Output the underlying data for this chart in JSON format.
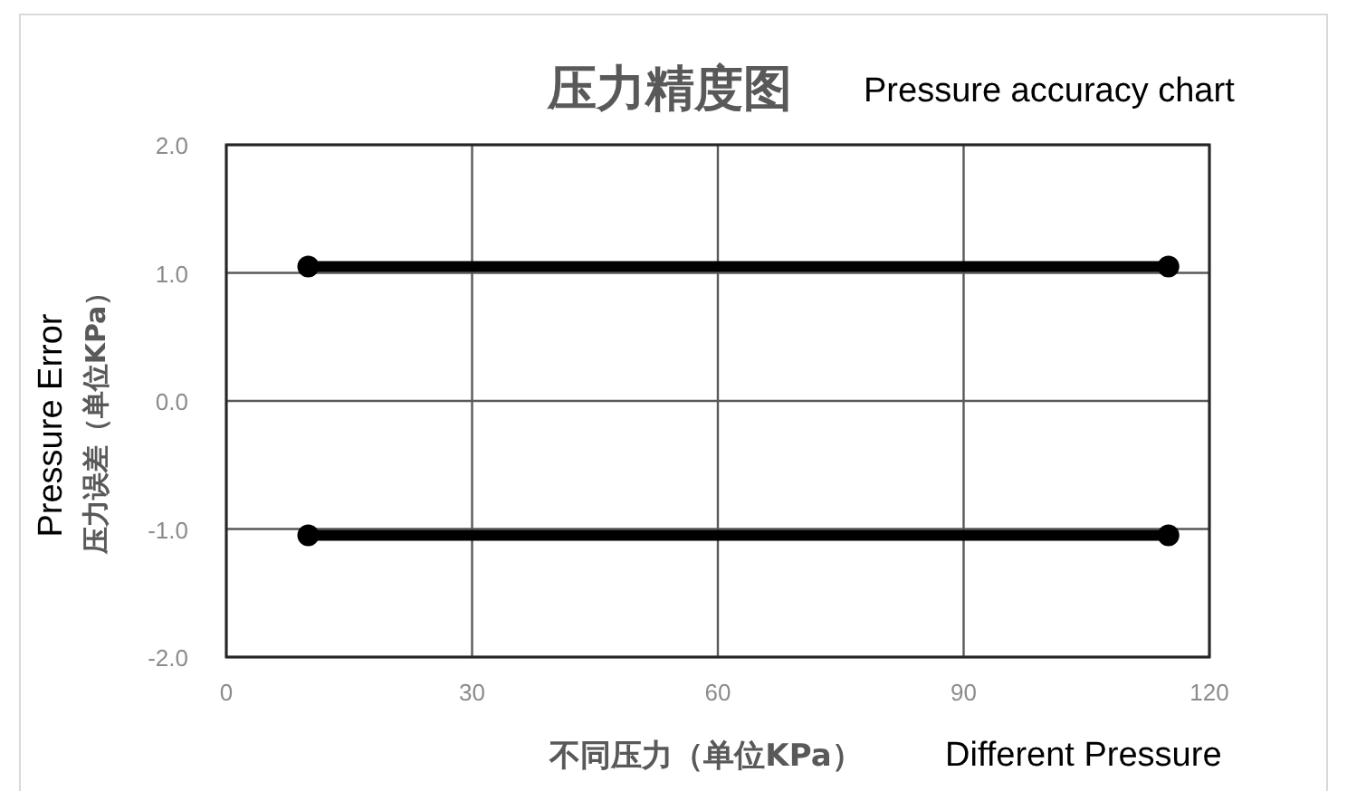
{
  "chart_data": {
    "type": "line",
    "title": "压力精度图",
    "xlabel": "不同压力（单位KPa）",
    "ylabel": "压力误差（单位KPa）",
    "annotations": [
      "Pressure accuracy chart",
      "Different Pressure",
      "Pressure Error"
    ],
    "x": [
      10,
      115
    ],
    "series": [
      {
        "color": "#000000",
        "values": [
          1.05,
          1.05
        ]
      },
      {
        "color": "#000000",
        "values": [
          -1.05,
          -1.05
        ]
      }
    ],
    "xlim": [
      0,
      120
    ],
    "xticks": [
      0,
      30,
      60,
      90,
      120
    ],
    "ylim": [
      -2.0,
      2.0
    ],
    "yticks": [
      {
        "value": 2,
        "label": "2.0"
      },
      {
        "value": 1,
        "label": "1.0"
      },
      {
        "value": 0,
        "label": "0.0"
      },
      {
        "value": -1,
        "label": "-1.0"
      },
      {
        "value": -2,
        "label": "-2.0"
      }
    ],
    "grid": true,
    "marker": "circle",
    "line_style": "solid"
  }
}
